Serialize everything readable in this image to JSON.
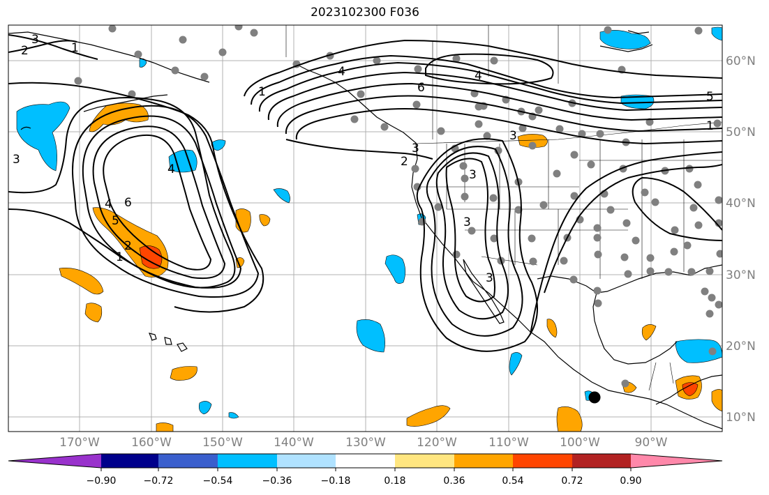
{
  "title": "2023102300 F036",
  "lon_labels": [
    "170°W",
    "160°W",
    "150°W",
    "140°W",
    "130°W",
    "120°W",
    "110°W",
    "100°W",
    "90°W"
  ],
  "lat_labels": [
    "60°N",
    "50°N",
    "40°N",
    "30°N",
    "20°N",
    "10°N"
  ],
  "contour_labels": [
    "2",
    "3",
    "1",
    "3",
    "4",
    "6",
    "4",
    "5",
    "2",
    "1",
    "4",
    "6",
    "3",
    "1",
    "3",
    "2",
    "3",
    "3",
    "3",
    "4",
    "1",
    "5"
  ],
  "colorbar": {
    "ticks": [
      "−0.90",
      "−0.72",
      "−0.54",
      "−0.36",
      "−0.18",
      "0.18",
      "0.36",
      "0.54",
      "0.72",
      "0.90"
    ],
    "colors": [
      "#9932cc",
      "#00008b",
      "#3a5fcd",
      "#00bfff",
      "#b0e2ff",
      "#ffffff",
      "#ffe680",
      "#ffa500",
      "#ff4500",
      "#b22222",
      "#ff88aa"
    ]
  },
  "legend_shading_colors": {
    "positive": "#ffa500",
    "strong_positive": "#ff4500",
    "negative": "#00bfff"
  }
}
